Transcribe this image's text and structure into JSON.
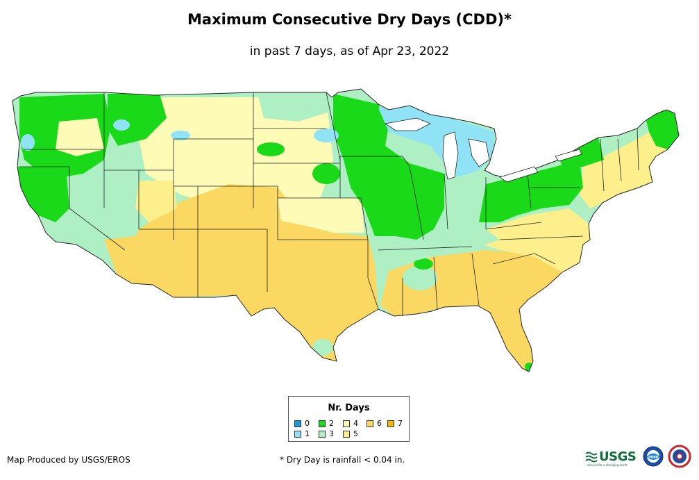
{
  "header": {
    "title": "Maximum Consecutive Dry Days (CDD)*",
    "subtitle": "in past 7 days, as of Apr 23, 2022"
  },
  "legend": {
    "title": "Nr. Days",
    "items": [
      {
        "label": "0",
        "color": "#1a9be0"
      },
      {
        "label": "1",
        "color": "#8fe3f5"
      },
      {
        "label": "2",
        "color": "#19d919"
      },
      {
        "label": "3",
        "color": "#aef0c4"
      },
      {
        "label": "4",
        "color": "#fdfbb6"
      },
      {
        "label": "5",
        "color": "#fcef8c"
      },
      {
        "label": "6",
        "color": "#fad862"
      },
      {
        "label": "7",
        "color": "#f5b800"
      }
    ]
  },
  "footer": {
    "credit": "Map Produced by USGS/EROS",
    "note": "* Dry Day is rainfall < 0.04 in."
  },
  "logos": {
    "usgs_text": "USGS",
    "usgs_tagline": "science for a changing world",
    "noaa_text": "noaa"
  }
}
